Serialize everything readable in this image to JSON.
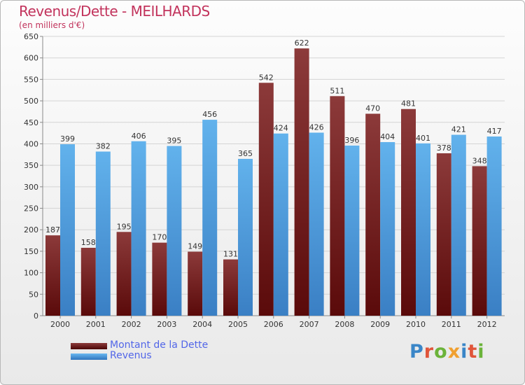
{
  "header": {
    "title": "Revenus/Dette - MEILHARDS",
    "subtitle": "(en milliers d'€)"
  },
  "colors": {
    "title": "#c2335c",
    "dette_dark": "#5a0a0a",
    "dette_light": "#8c3a3a",
    "revenus_dark": "#3a7fc4",
    "revenus_light": "#62b2ec",
    "legend_text": "#5266e8",
    "grid": "#d4d4d4"
  },
  "legend": {
    "items": [
      {
        "label": "Montant de la Dette",
        "color": "#6b1212"
      },
      {
        "label": "Revenus",
        "color": "#4c9fe0"
      }
    ]
  },
  "logo": {
    "text": "Proxiti"
  },
  "chart_data": {
    "type": "bar",
    "title": "Revenus/Dette - MEILHARDS",
    "subtitle": "(en milliers d'€)",
    "categories": [
      "2000",
      "2001",
      "2002",
      "2003",
      "2004",
      "2005",
      "2006",
      "2007",
      "2008",
      "2009",
      "2010",
      "2011",
      "2012"
    ],
    "series": [
      {
        "name": "Montant de la Dette",
        "values": [
          187,
          158,
          195,
          170,
          149,
          131,
          542,
          622,
          511,
          470,
          481,
          378,
          348
        ]
      },
      {
        "name": "Revenus",
        "values": [
          399,
          382,
          406,
          395,
          456,
          365,
          424,
          426,
          396,
          404,
          401,
          421,
          417
        ]
      }
    ],
    "ylim": [
      0,
      650
    ],
    "yticks": [
      0,
      50,
      100,
      150,
      200,
      250,
      300,
      350,
      400,
      450,
      500,
      550,
      600,
      650
    ],
    "grid": true,
    "legend_position": "bottom-left"
  }
}
